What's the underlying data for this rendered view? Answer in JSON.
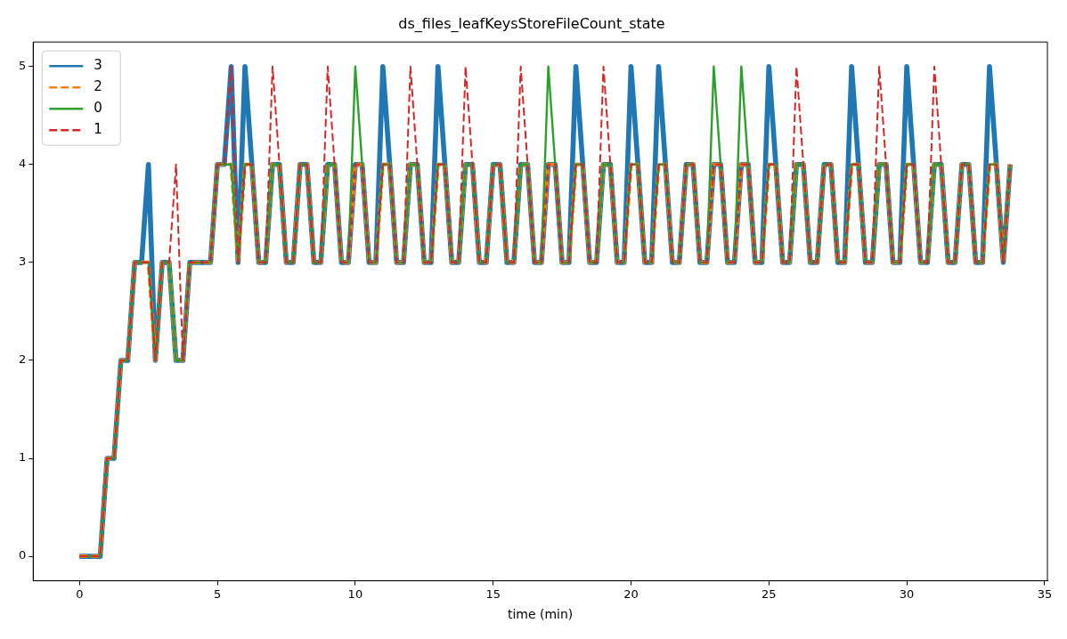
{
  "chart_data": {
    "type": "line",
    "title": "ds_files_leafKeysStoreFileCount_state",
    "xlabel": "time (min)",
    "x": [
      0,
      0.25,
      0.5,
      0.75,
      1,
      1.25,
      1.5,
      1.75,
      2,
      2.25,
      2.5,
      2.75,
      3,
      3.25,
      3.5,
      3.75,
      4,
      4.25,
      4.5,
      4.75,
      5,
      5.25,
      5.5,
      5.75,
      6,
      6.25,
      6.5,
      6.75,
      7,
      7.25,
      7.5,
      7.75,
      8,
      8.25,
      8.5,
      8.75,
      9,
      9.25,
      9.5,
      9.75,
      10,
      10.25,
      10.5,
      10.75,
      11,
      11.25,
      11.5,
      11.75,
      12,
      12.25,
      12.5,
      12.75,
      13,
      13.25,
      13.5,
      13.75,
      14,
      14.25,
      14.5,
      14.75,
      15,
      15.25,
      15.5,
      15.75,
      16,
      16.25,
      16.5,
      16.75,
      17,
      17.25,
      17.5,
      17.75,
      18,
      18.25,
      18.5,
      18.75,
      19,
      19.25,
      19.5,
      19.75,
      20,
      20.25,
      20.5,
      20.75,
      21,
      21.25,
      21.5,
      21.75,
      22,
      22.25,
      22.5,
      22.75,
      23,
      23.25,
      23.5,
      23.75,
      24,
      24.25,
      24.5,
      24.75,
      25,
      25.25,
      25.5,
      25.75,
      26,
      26.25,
      26.5,
      26.75,
      27,
      27.25,
      27.5,
      27.75,
      28,
      28.25,
      28.5,
      28.75,
      29,
      29.25,
      29.5,
      29.75,
      30,
      30.25,
      30.5,
      30.75,
      31,
      31.25,
      31.5,
      31.75,
      32,
      32.25,
      32.5,
      32.75,
      33,
      33.25,
      33.5,
      33.75
    ],
    "series": [
      {
        "name": "3",
        "color": "#1f77b4",
        "line_style": "solid",
        "values": [
          0,
          0,
          0,
          0,
          1,
          1,
          2,
          2,
          3,
          3,
          4,
          2,
          3,
          3,
          2,
          2,
          3,
          3,
          3,
          3,
          4,
          4,
          5,
          3,
          5,
          4,
          3,
          3,
          4,
          4,
          3,
          3,
          4,
          4,
          3,
          3,
          4,
          4,
          3,
          3,
          4,
          4,
          3,
          3,
          5,
          4,
          3,
          3,
          4,
          4,
          3,
          3,
          5,
          4,
          3,
          3,
          4,
          4,
          3,
          3,
          4,
          4,
          3,
          3,
          4,
          4,
          3,
          3,
          4,
          4,
          3,
          3,
          5,
          4,
          3,
          3,
          4,
          4,
          3,
          3,
          5,
          4,
          3,
          3,
          5,
          4,
          3,
          3,
          4,
          4,
          3,
          3,
          4,
          4,
          3,
          3,
          4,
          4,
          3,
          3,
          5,
          4,
          3,
          3,
          4,
          4,
          3,
          3,
          4,
          4,
          3,
          3,
          5,
          4,
          3,
          3,
          4,
          4,
          3,
          3,
          5,
          4,
          3,
          3,
          4,
          4,
          3,
          3,
          4,
          4,
          3,
          3,
          5,
          4,
          3,
          4
        ]
      },
      {
        "name": "2",
        "color": "#ff7f0e",
        "line_style": "dashed",
        "values": [
          0,
          0,
          0,
          0,
          1,
          1,
          2,
          2,
          3,
          3,
          3,
          2,
          3,
          3,
          2,
          2,
          3,
          3,
          3,
          3,
          4,
          4,
          4,
          3,
          4,
          4,
          3,
          3,
          4,
          4,
          3,
          3,
          4,
          4,
          3,
          3,
          4,
          4,
          3,
          3,
          4,
          4,
          3,
          3,
          4,
          4,
          3,
          3,
          4,
          4,
          3,
          3,
          4,
          4,
          3,
          3,
          4,
          4,
          3,
          3,
          4,
          4,
          3,
          3,
          4,
          4,
          3,
          3,
          4,
          4,
          3,
          3,
          4,
          4,
          3,
          3,
          4,
          4,
          3,
          3,
          4,
          4,
          3,
          3,
          4,
          4,
          3,
          3,
          4,
          4,
          3,
          3,
          4,
          4,
          3,
          3,
          4,
          4,
          3,
          3,
          4,
          4,
          3,
          3,
          4,
          4,
          3,
          3,
          4,
          4,
          3,
          3,
          4,
          4,
          3,
          3,
          4,
          4,
          3,
          3,
          4,
          4,
          3,
          3,
          4,
          4,
          3,
          3,
          4,
          4,
          3,
          3,
          4,
          4,
          3,
          4
        ]
      },
      {
        "name": "0",
        "color": "#2ca02c",
        "line_style": "solid",
        "values": [
          0,
          0,
          0,
          0,
          1,
          1,
          2,
          2,
          3,
          3,
          3,
          2,
          3,
          3,
          2,
          2,
          3,
          3,
          3,
          3,
          4,
          4,
          4,
          3,
          4,
          4,
          3,
          3,
          4,
          4,
          3,
          3,
          4,
          4,
          3,
          3,
          4,
          4,
          3,
          3,
          5,
          4,
          3,
          3,
          4,
          4,
          3,
          3,
          4,
          4,
          3,
          3,
          4,
          4,
          3,
          3,
          4,
          4,
          3,
          3,
          4,
          4,
          3,
          3,
          4,
          4,
          3,
          3,
          5,
          4,
          3,
          3,
          4,
          4,
          3,
          3,
          4,
          4,
          3,
          3,
          4,
          4,
          3,
          3,
          4,
          4,
          3,
          3,
          4,
          4,
          3,
          3,
          5,
          4,
          3,
          3,
          5,
          4,
          3,
          3,
          4,
          4,
          3,
          3,
          4,
          4,
          3,
          3,
          4,
          4,
          3,
          3,
          4,
          4,
          3,
          3,
          4,
          4,
          3,
          3,
          4,
          4,
          3,
          3,
          4,
          4,
          3,
          3,
          4,
          4,
          3,
          3,
          4,
          4,
          3,
          4
        ]
      },
      {
        "name": "1",
        "color": "#d62728",
        "line_style": "dashed",
        "values": [
          0,
          0,
          0,
          0,
          1,
          1,
          2,
          2,
          3,
          3,
          3,
          2,
          3,
          3,
          4,
          2,
          3,
          3,
          3,
          3,
          4,
          4,
          5,
          3,
          4,
          4,
          3,
          3,
          5,
          4,
          3,
          3,
          4,
          4,
          3,
          3,
          5,
          4,
          3,
          3,
          4,
          4,
          3,
          3,
          4,
          4,
          3,
          3,
          5,
          4,
          3,
          3,
          4,
          4,
          3,
          3,
          5,
          4,
          3,
          3,
          4,
          4,
          3,
          3,
          5,
          4,
          3,
          3,
          4,
          4,
          3,
          3,
          4,
          4,
          3,
          3,
          5,
          4,
          3,
          3,
          4,
          4,
          3,
          3,
          4,
          4,
          3,
          3,
          4,
          4,
          3,
          3,
          4,
          4,
          3,
          3,
          4,
          4,
          3,
          3,
          4,
          4,
          3,
          3,
          5,
          4,
          3,
          3,
          4,
          4,
          3,
          3,
          4,
          4,
          3,
          3,
          5,
          4,
          3,
          3,
          4,
          4,
          3,
          3,
          5,
          4,
          3,
          3,
          4,
          4,
          3,
          3,
          4,
          4,
          3,
          4
        ]
      }
    ],
    "xlim": [
      -1.68,
      35.1
    ],
    "xticks": [
      0,
      5,
      10,
      15,
      20,
      25,
      30,
      35
    ],
    "ylim": [
      -0.25,
      5.25
    ],
    "yticks": [
      0,
      1,
      2,
      3,
      4,
      5
    ],
    "grid": false,
    "legend": "top left",
    "marker": "none"
  }
}
